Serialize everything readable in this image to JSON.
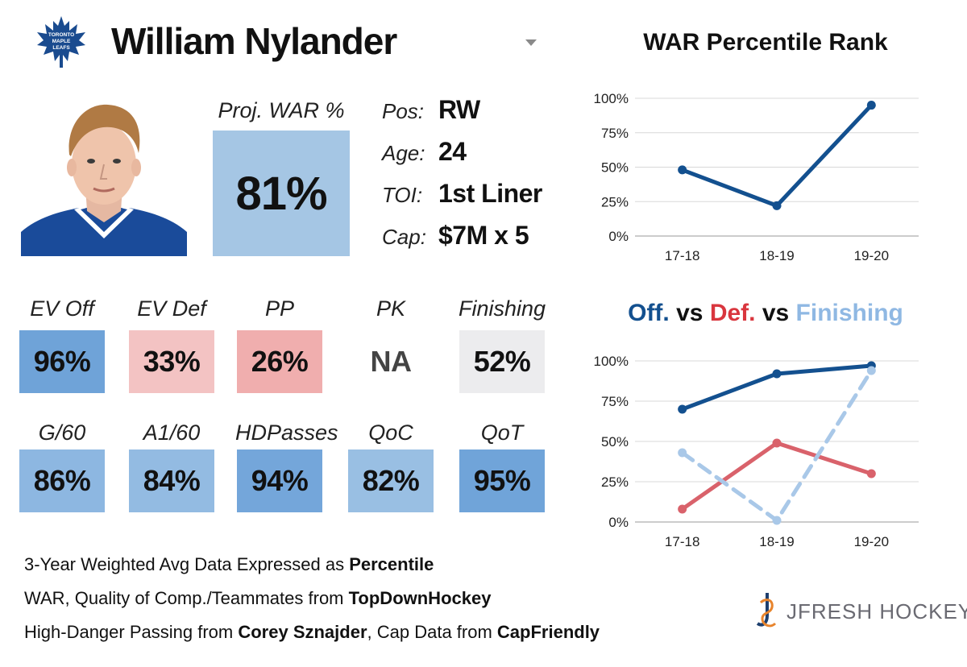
{
  "header": {
    "player_name": "William Nylander",
    "team_logo": "toronto-maple-leafs-logo",
    "logo_text": [
      "TORONTO",
      "MAPLE",
      "LEAFS"
    ]
  },
  "projection": {
    "label": "Proj. WAR %",
    "value": "81%"
  },
  "info": [
    {
      "key": "Pos:",
      "value": "RW"
    },
    {
      "key": "Age:",
      "value": "24"
    },
    {
      "key": "TOI:",
      "value": "1st Liner"
    },
    {
      "key": "Cap:",
      "value": "$7M x 5"
    }
  ],
  "stats_row1": [
    {
      "label": "EV Off",
      "value": "96%",
      "color": "#6fa3d8"
    },
    {
      "label": "EV Def",
      "value": "33%",
      "color": "#f3c3c3"
    },
    {
      "label": "PP",
      "value": "26%",
      "color": "#f0aeae"
    },
    {
      "label": "PK",
      "value": "NA",
      "color": "#ffffff"
    },
    {
      "label": "Finishing",
      "value": "52%",
      "color": "#ececee"
    }
  ],
  "stats_row2": [
    {
      "label": "G/60",
      "value": "86%",
      "color": "#8db7e1"
    },
    {
      "label": "A1/60",
      "value": "84%",
      "color": "#93bbe2"
    },
    {
      "label": "HDPasses",
      "value": "94%",
      "color": "#74a6da"
    },
    {
      "label": "QoC",
      "value": "82%",
      "color": "#99bfe3"
    },
    {
      "label": "QoT",
      "value": "95%",
      "color": "#70a4d9"
    }
  ],
  "footer": {
    "line1_text": "3-Year Weighted Avg Data Expressed as ",
    "line1_bold": "Percentile",
    "line2_text": "WAR, Quality of Comp./Teammates from ",
    "line2_bold": "TopDownHockey",
    "line3_text_a": "High-Danger Passing from ",
    "line3_bold_a": "Corey Sznajder",
    "line3_text_b": ", Cap Data from ",
    "line3_bold_b": "CapFriendly"
  },
  "brand": {
    "text": "JFRESH HOCKEY",
    "icon": "jfresh-hockey-logo-icon"
  },
  "colors": {
    "dark_blue": "#13508f",
    "red": "#d9626b",
    "light_blue": "#a9c8e8",
    "war_box": "#a5c6e4"
  },
  "chart_data": [
    {
      "type": "line",
      "title": "WAR Percentile Rank",
      "categories": [
        "17-18",
        "18-19",
        "19-20"
      ],
      "yticks": [
        "0%",
        "25%",
        "50%",
        "75%",
        "100%"
      ],
      "ylim": [
        0,
        100
      ],
      "series": [
        {
          "name": "WAR",
          "values": [
            48,
            22,
            95
          ],
          "color": "#13508f",
          "dash": false
        }
      ]
    },
    {
      "type": "line",
      "title_parts": [
        {
          "text": "Off.",
          "color": "#13508f"
        },
        {
          "text": " vs ",
          "color": "#111111"
        },
        {
          "text": "Def.",
          "color": "#d9363e"
        },
        {
          "text": " vs ",
          "color": "#111111"
        },
        {
          "text": "Finishing",
          "color": "#8fb8e3"
        }
      ],
      "categories": [
        "17-18",
        "18-19",
        "19-20"
      ],
      "yticks": [
        "0%",
        "25%",
        "50%",
        "75%",
        "100%"
      ],
      "ylim": [
        0,
        100
      ],
      "series": [
        {
          "name": "Off.",
          "values": [
            70,
            92,
            97
          ],
          "color": "#13508f",
          "dash": false
        },
        {
          "name": "Def.",
          "values": [
            8,
            49,
            30
          ],
          "color": "#d9626b",
          "dash": false
        },
        {
          "name": "Finishing",
          "values": [
            43,
            1,
            94
          ],
          "color": "#a9c8e8",
          "dash": true
        }
      ]
    }
  ]
}
